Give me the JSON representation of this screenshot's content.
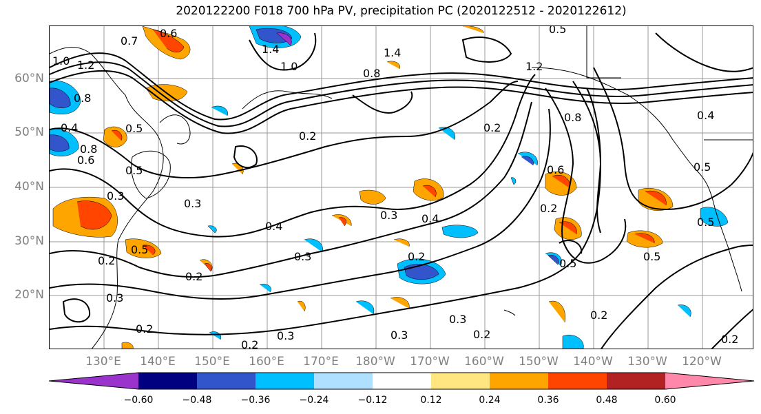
{
  "title": "2020122200 F018 700 hPa PV, precipitation PC (2020122512 - 2020122612)",
  "map": {
    "lat_labels": [
      "60°N",
      "50°N",
      "40°N",
      "30°N",
      "20°N"
    ],
    "lon_labels": [
      "130°E",
      "140°E",
      "150°E",
      "160°E",
      "170°E",
      "180°W",
      "170°W",
      "160°W",
      "150°W",
      "140°W",
      "130°W",
      "120°W"
    ],
    "contour_labels": [
      "0.6",
      "0.7",
      "1.4",
      "1.4",
      "1.2",
      "1.0",
      "0.8",
      "0.4",
      "0.5",
      "0.5",
      "0.8",
      "1.0",
      "1.2",
      "0.2",
      "0.8",
      "0.3",
      "0.4",
      "0.3",
      "0.4",
      "0.3",
      "0.3",
      "0.2",
      "0.2",
      "0.2",
      "0.3",
      "0.2",
      "0.2",
      "0.3",
      "0.3",
      "0.2",
      "0.6",
      "0.2",
      "0.5",
      "0.2",
      "0.5",
      "0.5",
      "0.2",
      "0.2",
      "0.5",
      "0.3",
      "0.8",
      "0.6",
      "0.4",
      "0.5",
      "0.5"
    ]
  },
  "colorbar": {
    "ticks": [
      "−0.60",
      "−0.48",
      "−0.36",
      "−0.24",
      "−0.12",
      "0.12",
      "0.24",
      "0.36",
      "0.48",
      "0.60"
    ],
    "colors": [
      "#9933cc",
      "#000080",
      "#3355cc",
      "#00bfff",
      "#b0e0ff",
      "#ffffff",
      "#ffe680",
      "#ffa500",
      "#ff4500",
      "#b22222",
      "#ff88aa"
    ]
  },
  "colors": {
    "contour": "#000000",
    "grid": "#999999",
    "coast": "#000000"
  }
}
